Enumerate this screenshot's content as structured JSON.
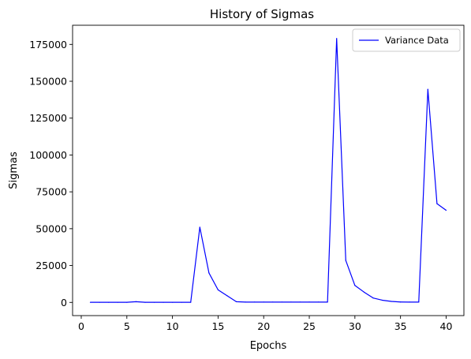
{
  "chart_data": {
    "type": "line",
    "title": "History of Sigmas",
    "xlabel": "Epochs",
    "ylabel": "Sigmas",
    "xlim": [
      -0.95,
      41.95
    ],
    "ylim": [
      -8950,
      188000
    ],
    "xticks": [
      0,
      5,
      10,
      15,
      20,
      25,
      30,
      35,
      40
    ],
    "xtick_labels": [
      "0",
      "5",
      "10",
      "15",
      "20",
      "25",
      "30",
      "35",
      "40"
    ],
    "yticks": [
      0,
      25000,
      50000,
      75000,
      100000,
      125000,
      150000,
      175000
    ],
    "ytick_labels": [
      "0",
      "25000",
      "50000",
      "75000",
      "100000",
      "125000",
      "150000",
      "175000"
    ],
    "grid": false,
    "legend_position": "top-right",
    "series": [
      {
        "name": "Variance Data",
        "color": "#0000ff",
        "x": [
          1,
          2,
          3,
          4,
          5,
          6,
          7,
          8,
          9,
          10,
          11,
          12,
          13,
          14,
          15,
          16,
          17,
          18,
          19,
          20,
          21,
          22,
          23,
          24,
          25,
          26,
          27,
          28,
          29,
          30,
          31,
          32,
          33,
          34,
          35,
          36,
          37,
          38,
          39,
          40
        ],
        "y": [
          100,
          100,
          100,
          100,
          100,
          500,
          100,
          100,
          100,
          100,
          100,
          100,
          51000,
          20000,
          8500,
          4500,
          500,
          200,
          200,
          200,
          200,
          200,
          200,
          200,
          200,
          200,
          200,
          179000,
          28500,
          11500,
          7000,
          3000,
          1500,
          700,
          300,
          200,
          200,
          144500,
          67000,
          62500
        ]
      }
    ]
  }
}
